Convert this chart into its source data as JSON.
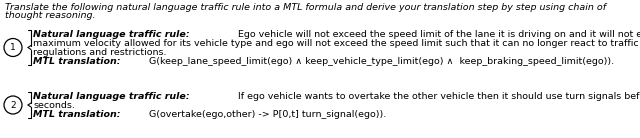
{
  "prompt_line1": "Translate the following natural language traffic rule into a MTL formula and derive your translation step by step using chain of",
  "prompt_line2": "thought reasoning.",
  "r1_nl_bold": "Natural language traffic rule:",
  "r1_nl_text": " Ego vehicle will not exceed the speed limit of the lane it is driving on and it will not exceed the",
  "r1_nl_line2": "maximum velocity allowed for its vehicle type and ego will not exceed the speed limit such that it can no longer react to traffic",
  "r1_nl_line3": "regulations and restrictions.",
  "r1_mtl_bold": "MTL translation:",
  "r1_mtl_text": " G(keep_lane_speed_limit(ego) ∧ keep_vehicle_type_limit(ego) ∧  keep_braking_speed_limit(ego)).",
  "r2_nl_bold": "Natural language traffic rule:",
  "r2_nl_text": " If ego vehicle wants to overtake the other vehicle then it should use turn signals beforehand for t",
  "r2_nl_line2": "seconds.",
  "r2_mtl_bold": "MTL translation:",
  "r2_mtl_text": " G(overtake(ego,other) -> P[0,t] turn_signal(ego)).",
  "num1": "1",
  "num2": "2",
  "bg": "#ffffff",
  "tc": "#000000",
  "fs_prompt": 6.8,
  "fs_rule": 6.8,
  "circle_r": 9
}
